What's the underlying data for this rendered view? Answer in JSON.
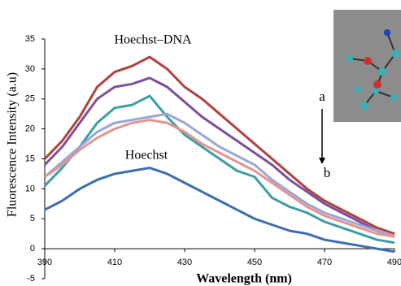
{
  "chart_data": {
    "type": "line",
    "x": [
      390,
      395,
      400,
      405,
      410,
      415,
      420,
      425,
      430,
      435,
      440,
      445,
      450,
      455,
      460,
      465,
      470,
      475,
      480,
      485,
      490
    ],
    "series": [
      {
        "color": "#b0413e",
        "values": [
          15,
          18,
          22,
          27,
          29.5,
          30.5,
          32,
          30,
          27,
          25,
          22.5,
          20,
          17.5,
          15,
          12.5,
          10,
          8,
          6.5,
          5,
          3.5,
          2.5
        ]
      },
      {
        "color": "#7b4fa0",
        "values": [
          14,
          17,
          21,
          25,
          27,
          27.5,
          28.5,
          27,
          24.5,
          22,
          20,
          18,
          16,
          14,
          11.5,
          9.5,
          7.5,
          6,
          4.5,
          3,
          2
        ]
      },
      {
        "color": "#3a9fa6",
        "values": [
          10.5,
          13.5,
          17,
          21,
          23.5,
          24,
          25.5,
          22,
          19,
          17,
          15,
          13,
          12,
          8.5,
          7,
          6,
          4.5,
          3.5,
          2.5,
          1.5,
          1
        ]
      },
      {
        "color": "#9aa6d6",
        "values": [
          12,
          14.5,
          17,
          19.5,
          21,
          21.5,
          22,
          22.5,
          21,
          19,
          17,
          15.5,
          14,
          11.5,
          9.5,
          7.5,
          6,
          5,
          4,
          3,
          2
        ]
      },
      {
        "color": "#e09590",
        "values": [
          12,
          14,
          16.5,
          18.5,
          20,
          21,
          21.5,
          21,
          19.5,
          17.5,
          16,
          14.5,
          13,
          11,
          9,
          7,
          5.5,
          4.5,
          3.5,
          2.5,
          2
        ]
      },
      {
        "color": "#3b6fae",
        "values": [
          6.5,
          8,
          10,
          11.5,
          12.5,
          13,
          13.5,
          12.5,
          11,
          9.5,
          8,
          6.5,
          5,
          4,
          3,
          2.5,
          1.5,
          1,
          0.5,
          0,
          -0.5
        ]
      }
    ],
    "xlim": [
      390,
      490
    ],
    "xticks": [
      390,
      410,
      430,
      450,
      470,
      490
    ],
    "ylim": [
      -5,
      35
    ],
    "yticks": [
      -5,
      0,
      5,
      10,
      15,
      20,
      25,
      30,
      35
    ],
    "x_label": "Wavelength (nm)",
    "y_label": "Fluorescence Intensity (a.u)",
    "annotations": [
      "Hoechst–DNA",
      "Hoechst",
      "a",
      "b"
    ]
  }
}
